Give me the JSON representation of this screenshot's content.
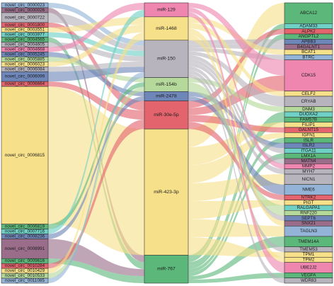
{
  "colors": {
    "yellow": "#f7e08a",
    "gray": "#b8b4bd",
    "pink": "#ee86b0",
    "teal": "#6fd0c6",
    "red": "#e4646e",
    "green": "#5cb87a",
    "blue": "#6f86b8",
    "steel": "#93b4d6",
    "mauve": "#9a6e8a",
    "lgreen": "#b5d99a",
    "border": "#333333"
  },
  "circ_nodes": [
    {
      "label": "novel_circ_0000023",
      "color": "steel",
      "h": 1
    },
    {
      "label": "novel_circ_0000026",
      "color": "mauve",
      "h": 1
    },
    {
      "label": "novel_circ_0000722",
      "color": "gray",
      "h": 2
    },
    {
      "label": "novel_circ_0001800",
      "color": "red",
      "h": 1
    },
    {
      "label": "novel_circ_0003551",
      "color": "yellow",
      "h": 1
    },
    {
      "label": "novel_circ_0003977",
      "color": "teal",
      "h": 1
    },
    {
      "label": "novel_circ_0004565",
      "color": "green",
      "h": 1
    },
    {
      "label": "novel_circ_0004605",
      "color": "gray",
      "h": 1
    },
    {
      "label": "novel_circ_0004668",
      "color": "pink",
      "h": 1
    },
    {
      "label": "novel_circ_0005245",
      "color": "blue",
      "h": 1
    },
    {
      "label": "novel_circ_0005885",
      "color": "lgreen",
      "h": 1
    },
    {
      "label": "novel_circ_0006023",
      "color": "yellow",
      "h": 1
    },
    {
      "label": "novel_circ_0006084",
      "color": "gray",
      "h": 1
    },
    {
      "label": "novel_circ_0006099",
      "color": "blue",
      "h": 2
    },
    {
      "label": "novel_circ_0006664",
      "color": "red",
      "h": 1
    },
    {
      "label": "novel_circ_0006815",
      "color": "yellow",
      "h": 28
    },
    {
      "label": "novel_circ_0006819",
      "color": "green",
      "h": 1
    },
    {
      "label": "novel_circ_0007716",
      "color": "teal",
      "h": 1
    },
    {
      "label": "novel_circ_0008236",
      "color": "blue",
      "h": 1
    },
    {
      "label": "novel_circ_0008991",
      "color": "mauve",
      "h": 4
    },
    {
      "label": "novel_circ_0009616",
      "color": "green",
      "h": 1
    },
    {
      "label": "novel_circ_0010284",
      "color": "red",
      "h": 1
    },
    {
      "label": "novel_circ_0010429",
      "color": "yellow",
      "h": 1
    },
    {
      "label": "novel_circ_0010533",
      "color": "lgreen",
      "h": 1
    },
    {
      "label": "novel_circ_0011085",
      "color": "steel",
      "h": 1
    }
  ],
  "mirna_nodes": [
    {
      "label": "miR-129",
      "color": "pink",
      "h": 3
    },
    {
      "label": "miR-1468",
      "color": "yellow",
      "h": 5
    },
    {
      "label": "miR-150",
      "color": "gray",
      "h": 8
    },
    {
      "label": "miR-154b",
      "color": "lgreen",
      "h": 3
    },
    {
      "label": "miR-2478",
      "color": "blue",
      "h": 2
    },
    {
      "label": "miR-30e-5p",
      "color": "red",
      "h": 6
    },
    {
      "label": "miR-423-3p",
      "color": "yellow",
      "h": 27
    },
    {
      "label": "miR-767",
      "color": "green",
      "h": 6
    }
  ],
  "gene_nodes": [
    {
      "label": "ABCA12",
      "color": "green",
      "h": 4
    },
    {
      "label": "ADAM33",
      "color": "teal",
      "h": 1
    },
    {
      "label": "ALPK2",
      "color": "red",
      "h": 1
    },
    {
      "label": "ANGPTL2",
      "color": "green",
      "h": 1
    },
    {
      "label": "APBB3",
      "color": "blue",
      "h": 1
    },
    {
      "label": "B4GALNT1",
      "color": "mauve",
      "h": 1
    },
    {
      "label": "BCAT1",
      "color": "yellow",
      "h": 1
    },
    {
      "label": "BTRC",
      "color": "steel",
      "h": 1
    },
    {
      "label": "CDK15",
      "color": "pink",
      "h": 6
    },
    {
      "label": "CELF2",
      "color": "yellow",
      "h": 1
    },
    {
      "label": "CRYAB",
      "color": "gray",
      "h": 2
    },
    {
      "label": "DNM3",
      "color": "lgreen",
      "h": 1
    },
    {
      "label": "DUOXA2",
      "color": "teal",
      "h": 1
    },
    {
      "label": "FAM57B",
      "color": "green",
      "h": 1
    },
    {
      "label": "FILIP1",
      "color": "yellow",
      "h": 1
    },
    {
      "label": "GALNT15",
      "color": "red",
      "h": 1
    },
    {
      "label": "IGFN1",
      "color": "yellow",
      "h": 1
    },
    {
      "label": "ISLR",
      "color": "green",
      "h": 1
    },
    {
      "label": "ISLR2",
      "color": "blue",
      "h": 1
    },
    {
      "label": "ITGA11",
      "color": "teal",
      "h": 1
    },
    {
      "label": "LMX1A",
      "color": "green",
      "h": 1
    },
    {
      "label": "MATN4",
      "color": "mauve",
      "h": 1
    },
    {
      "label": "MMP2",
      "color": "pink",
      "h": 1
    },
    {
      "label": "MYH7",
      "color": "gray",
      "h": 1
    },
    {
      "label": "NICN1",
      "color": "gray",
      "h": 2
    },
    {
      "label": "NME6",
      "color": "steel",
      "h": 2
    },
    {
      "label": "NTRK2",
      "color": "red",
      "h": 1
    },
    {
      "label": "PIGT",
      "color": "yellow",
      "h": 1
    },
    {
      "label": "RALGAPA1",
      "color": "teal",
      "h": 1
    },
    {
      "label": "RNF220",
      "color": "lgreen",
      "h": 1
    },
    {
      "label": "SEPT6",
      "color": "blue",
      "h": 1
    },
    {
      "label": "SNX21",
      "color": "mauve",
      "h": 1
    },
    {
      "label": "TAGLN3",
      "color": "steel",
      "h": 2
    },
    {
      "label": "TMEM14A",
      "color": "green",
      "h": 2
    },
    {
      "label": "TMEM53",
      "color": "gray",
      "h": 1
    },
    {
      "label": "TPM1",
      "color": "yellow",
      "h": 1
    },
    {
      "label": "TPM2",
      "color": "yellow",
      "h": 1
    },
    {
      "label": "UBE2J2",
      "color": "pink",
      "h": 2
    },
    {
      "label": "VEGFA",
      "color": "green",
      "h": 1
    },
    {
      "label": "WDR83",
      "color": "gray",
      "h": 1
    }
  ],
  "links_left": [
    [
      "novel_circ_0000023",
      "miR-150"
    ],
    [
      "novel_circ_0000026",
      "miR-767"
    ],
    [
      "novel_circ_0000722",
      "miR-150"
    ],
    [
      "novel_circ_0001800",
      "miR-30e-5p"
    ],
    [
      "novel_circ_0003551",
      "miR-1468"
    ],
    [
      "novel_circ_0003977",
      "miR-150"
    ],
    [
      "novel_circ_0004565",
      "miR-767"
    ],
    [
      "novel_circ_0004605",
      "miR-150"
    ],
    [
      "novel_circ_0004668",
      "miR-129"
    ],
    [
      "novel_circ_0005245",
      "miR-2478"
    ],
    [
      "novel_circ_0005885",
      "miR-154b"
    ],
    [
      "novel_circ_0006023",
      "miR-1468"
    ],
    [
      "novel_circ_0006084",
      "miR-150"
    ],
    [
      "novel_circ_0006099",
      "miR-150"
    ],
    [
      "novel_circ_0006664",
      "miR-30e-5p"
    ],
    [
      "novel_circ_0006815",
      "miR-423-3p"
    ],
    [
      "novel_circ_0006819",
      "miR-154b"
    ],
    [
      "novel_circ_0007716",
      "miR-129"
    ],
    [
      "novel_circ_0008236",
      "miR-2478"
    ],
    [
      "novel_circ_0008991",
      "miR-767"
    ],
    [
      "novel_circ_0009616",
      "miR-767"
    ],
    [
      "novel_circ_0010284",
      "miR-30e-5p"
    ],
    [
      "novel_circ_0010429",
      "miR-1468"
    ],
    [
      "novel_circ_0010533",
      "miR-154b"
    ],
    [
      "novel_circ_0011085",
      "miR-150"
    ]
  ],
  "links_right": [
    [
      "miR-423-3p",
      "ABCA12"
    ],
    [
      "miR-767",
      "ADAM33"
    ],
    [
      "miR-30e-5p",
      "ALPK2"
    ],
    [
      "miR-767",
      "ANGPTL2"
    ],
    [
      "miR-150",
      "APBB3"
    ],
    [
      "miR-150",
      "B4GALNT1"
    ],
    [
      "miR-1468",
      "BCAT1"
    ],
    [
      "miR-150",
      "BTRC"
    ],
    [
      "miR-129",
      "CDK15"
    ],
    [
      "miR-30e-5p",
      "CDK15"
    ],
    [
      "miR-1468",
      "CELF2"
    ],
    [
      "miR-150",
      "CRYAB"
    ],
    [
      "miR-154b",
      "DNM3"
    ],
    [
      "miR-767",
      "DUOXA2"
    ],
    [
      "miR-767",
      "FAM57B"
    ],
    [
      "miR-423-3p",
      "FILIP1"
    ],
    [
      "miR-30e-5p",
      "GALNT15"
    ],
    [
      "miR-423-3p",
      "IGFN1"
    ],
    [
      "miR-767",
      "ISLR"
    ],
    [
      "miR-2478",
      "ISLR2"
    ],
    [
      "miR-150",
      "ITGA11"
    ],
    [
      "miR-767",
      "LMX1A"
    ],
    [
      "miR-150",
      "MATN4"
    ],
    [
      "miR-129",
      "MMP2"
    ],
    [
      "miR-150",
      "MYH7"
    ],
    [
      "miR-423-3p",
      "NICN1"
    ],
    [
      "miR-2478",
      "NME6"
    ],
    [
      "miR-30e-5p",
      "NTRK2"
    ],
    [
      "miR-423-3p",
      "PIGT"
    ],
    [
      "miR-154b",
      "RALGAPA1"
    ],
    [
      "miR-154b",
      "RNF220"
    ],
    [
      "miR-150",
      "SEPT6"
    ],
    [
      "miR-1468",
      "SNX21"
    ],
    [
      "miR-423-3p",
      "TAGLN3"
    ],
    [
      "miR-767",
      "TMEM14A"
    ],
    [
      "miR-150",
      "TMEM53"
    ],
    [
      "miR-423-3p",
      "TPM1"
    ],
    [
      "miR-1468",
      "TPM2"
    ],
    [
      "miR-129",
      "UBE2J2"
    ],
    [
      "miR-767",
      "VEGFA"
    ],
    [
      "miR-150",
      "WDR83"
    ]
  ]
}
